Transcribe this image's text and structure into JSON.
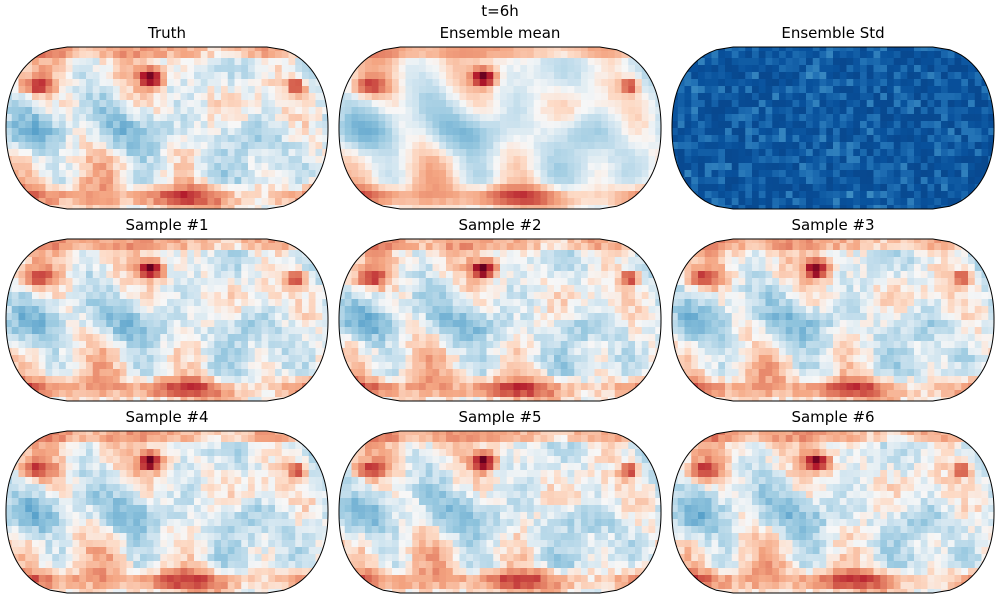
{
  "figure": {
    "title": "t=6h"
  },
  "chart_data": [
    {
      "type": "heatmap",
      "title": "Truth",
      "projection": "robinson",
      "colormap": "RdBu_r",
      "grid": false,
      "seed": 1
    },
    {
      "type": "heatmap",
      "title": "Ensemble mean",
      "projection": "robinson",
      "colormap": "RdBu_r",
      "grid": false,
      "seed": 2
    },
    {
      "type": "heatmap",
      "title": "Ensemble Std",
      "projection": "robinson",
      "colormap": "Blues",
      "grid": false,
      "seed": 3
    },
    {
      "type": "heatmap",
      "title": "Sample #1",
      "projection": "robinson",
      "colormap": "RdBu_r",
      "grid": false,
      "seed": 4
    },
    {
      "type": "heatmap",
      "title": "Sample #2",
      "projection": "robinson",
      "colormap": "RdBu_r",
      "grid": false,
      "seed": 5
    },
    {
      "type": "heatmap",
      "title": "Sample #3",
      "projection": "robinson",
      "colormap": "RdBu_r",
      "grid": false,
      "seed": 6
    },
    {
      "type": "heatmap",
      "title": "Sample #4",
      "projection": "robinson",
      "colormap": "RdBu_r",
      "grid": false,
      "seed": 7
    },
    {
      "type": "heatmap",
      "title": "Sample #5",
      "projection": "robinson",
      "colormap": "RdBu_r",
      "grid": false,
      "seed": 8
    },
    {
      "type": "heatmap",
      "title": "Sample #6",
      "projection": "robinson",
      "colormap": "RdBu_r",
      "grid": false,
      "seed": 9
    }
  ]
}
